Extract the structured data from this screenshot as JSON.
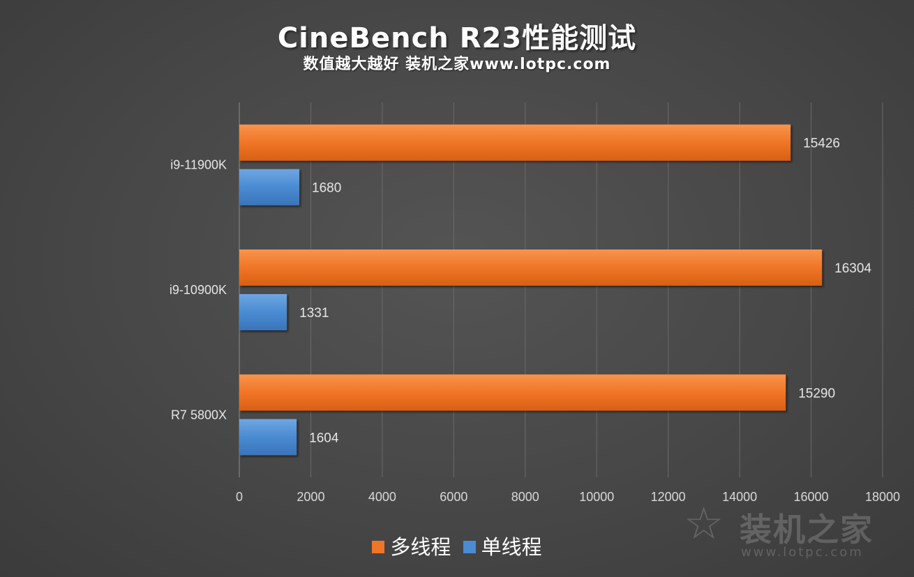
{
  "header": {
    "title": "CineBench R23性能测试",
    "subtitle": "数值越大越好 装机之家www.lotpc.com"
  },
  "legend": {
    "items": [
      {
        "label": "多线程",
        "color": "#F07526"
      },
      {
        "label": "单线程",
        "color": "#4A8BD2"
      }
    ]
  },
  "watermark": {
    "text": "装机之家",
    "url": "www.lotpc.com"
  },
  "chart_data": {
    "type": "bar",
    "orientation": "horizontal",
    "categories": [
      "i9-11900K",
      "i9-10900K",
      "R7 5800X"
    ],
    "series": [
      {
        "name": "多线程",
        "values": [
          15426,
          16304,
          15290
        ],
        "color": "#F07526"
      },
      {
        "name": "单线程",
        "values": [
          1680,
          1331,
          1604
        ],
        "color": "#4A8BD2"
      }
    ],
    "xlim": [
      0,
      18000
    ],
    "xticks": [
      0,
      2000,
      4000,
      6000,
      8000,
      10000,
      12000,
      14000,
      16000,
      18000
    ],
    "grid": true,
    "legend_position": "bottom"
  }
}
